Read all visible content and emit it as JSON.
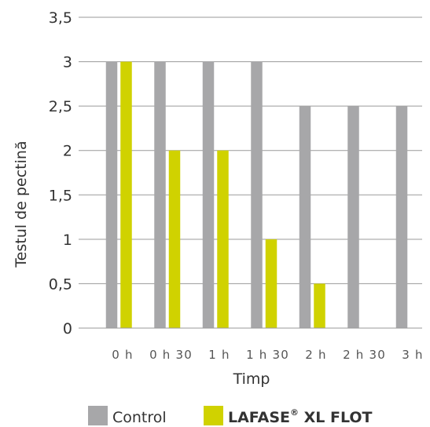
{
  "chart_data": {
    "type": "bar",
    "xlabel": "Timp",
    "ylabel": "Testul de pectină",
    "categories": [
      "0 h",
      "0 h 30",
      "1 h",
      "1 h 30",
      "2 h",
      "2 h 30",
      "3 h"
    ],
    "yticks": [
      "0",
      "0,5",
      "1",
      "1,5",
      "2",
      "2,5",
      "3",
      "3,5"
    ],
    "ylim": [
      0,
      3.5
    ],
    "grid": true,
    "legend_position": "bottom",
    "series": [
      {
        "name": "Control",
        "color": "#a7a7a9",
        "values": [
          3,
          3,
          3,
          3,
          2.5,
          2.5,
          2.5
        ]
      },
      {
        "name": "LAFASE",
        "name_superscript": "®",
        "name_suffix": " XL FLOT",
        "color": "#d0d200",
        "values": [
          3,
          2,
          2,
          1,
          0.5,
          0,
          0
        ]
      }
    ]
  }
}
